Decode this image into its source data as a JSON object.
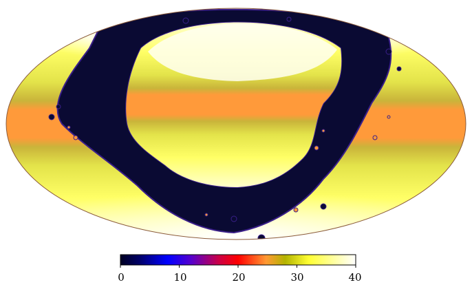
{
  "map": {
    "projection": "mollweide",
    "colormap": [
      "#000033",
      "#0000ff",
      "#ff0000",
      "#ff9933",
      "#b3b300",
      "#ffff33",
      "#ffffff"
    ]
  },
  "colorbar": {
    "min": 0,
    "max": 40,
    "tick_labels": [
      "0",
      "10",
      "20",
      "30",
      "40"
    ]
  }
}
